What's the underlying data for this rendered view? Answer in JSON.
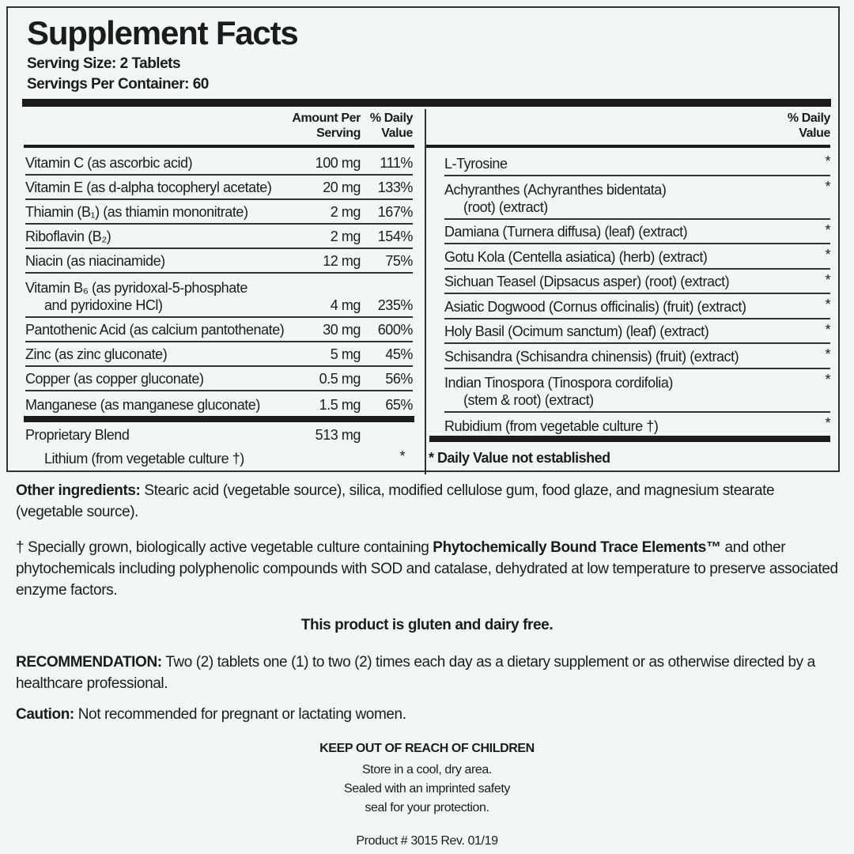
{
  "title": "Supplement Facts",
  "serving_size": "Serving Size: 2 Tablets",
  "servings_per_container": "Servings Per Container: 60",
  "left_headers": {
    "amount": "Amount Per Serving",
    "dv": "% Daily Value"
  },
  "right_headers": {
    "dv": "% Daily Value"
  },
  "left_rows": [
    {
      "name": "Vitamin C (as ascorbic acid)",
      "amount": "100 mg",
      "dv": "111%"
    },
    {
      "name": "Vitamin E (as d-alpha tocopheryl acetate)",
      "amount": "20 mg",
      "dv": "133%"
    },
    {
      "name": "Thiamin (B₁) (as thiamin mononitrate)",
      "amount": "2 mg",
      "dv": "167%"
    },
    {
      "name": "Riboflavin (B₂)",
      "amount": "2 mg",
      "dv": "154%"
    },
    {
      "name": "Niacin (as niacinamide)",
      "amount": "12 mg",
      "dv": "75%"
    },
    {
      "name": "Vitamin B₆ (as pyridoxal-5-phosphate",
      "name2": "and pyridoxine HCl)",
      "amount": "4 mg",
      "dv": "235%"
    },
    {
      "name": "Pantothenic Acid (as calcium pantothenate)",
      "amount": "30 mg",
      "dv": "600%"
    },
    {
      "name": "Zinc (as zinc gluconate)",
      "amount": "5 mg",
      "dv": "45%"
    },
    {
      "name": "Copper (as copper gluconate)",
      "amount": "0.5 mg",
      "dv": "56%"
    },
    {
      "name": "Manganese (as manganese gluconate)",
      "amount": "1.5 mg",
      "dv": "65%"
    }
  ],
  "blend": {
    "name": "Proprietary Blend",
    "amount": "513 mg",
    "sub": "Lithium (from vegetable culture †)",
    "sub_dv": "*"
  },
  "right_rows": [
    {
      "name": "L-Tyrosine",
      "dv": "*"
    },
    {
      "name": "Achyranthes (Achyranthes bidentata)",
      "name2": "(root) (extract)",
      "dv": "*"
    },
    {
      "name": "Damiana (Turnera diffusa) (leaf) (extract)",
      "dv": "*"
    },
    {
      "name": "Gotu Kola (Centella asiatica) (herb) (extract)",
      "dv": "*"
    },
    {
      "name": "Sichuan Teasel (Dipsacus asper) (root) (extract)",
      "dv": "*"
    },
    {
      "name": "Asiatic Dogwood (Cornus officinalis) (fruit) (extract)",
      "dv": "*"
    },
    {
      "name": "Holy Basil (Ocimum sanctum) (leaf) (extract)",
      "dv": "*"
    },
    {
      "name": "Schisandra (Schisandra chinensis) (fruit) (extract)",
      "dv": "*"
    },
    {
      "name": "Indian Tinospora (Tinospora cordifolia)",
      "name2": "(stem & root) (extract)",
      "dv": "*"
    },
    {
      "name": "Rubidium (from vegetable culture †)",
      "dv": "*"
    }
  ],
  "dv_note": "* Daily Value not established",
  "other_label": "Other ingredients:",
  "other_text": " Stearic acid (vegetable source), silica, modified cellulose gum, food glaze, and magnesium stearate (vegetable source).",
  "dagger_pre": "† Specially grown, biologically active vegetable culture containing ",
  "dagger_bold": "Phytochemically Bound Trace Elements™",
  "dagger_post": " and other phytochemicals including polyphenolic compounds with SOD and catalase, dehydrated at low temperature to preserve associated enzyme factors.",
  "gluten": "This product is gluten and dairy free.",
  "rec_label": "RECOMMENDATION:",
  "rec_text": " Two (2) tablets one (1) to two (2) times each day as a dietary supplement or as otherwise directed by a healthcare professional.",
  "caution_label": "Caution:",
  "caution_text": " Not recommended for pregnant or lactating women.",
  "keep_out": "KEEP OUT OF REACH OF CHILDREN",
  "store": [
    "Store in a cool, dry area.",
    "Sealed with an imprinted safety",
    "seal for your protection."
  ],
  "product": "Product # 3015  Rev. 01/19"
}
